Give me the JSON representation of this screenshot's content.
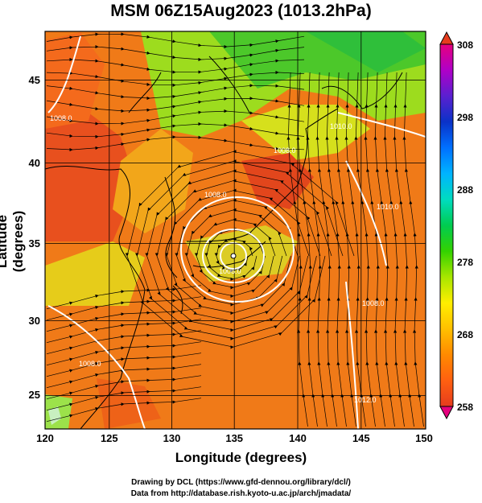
{
  "title": "MSM 06Z15Aug2023 (1013.2hPa)",
  "axes": {
    "xlabel": "Longitude (degrees)",
    "ylabel": "Latitude  (degrees)",
    "xticks": [
      "120",
      "125",
      "130",
      "135",
      "140",
      "145",
      "150"
    ],
    "yticks": [
      "25",
      "30",
      "35",
      "40",
      "45"
    ],
    "xlim": [
      120,
      150
    ],
    "ylim": [
      22.5,
      47.5
    ]
  },
  "colorbar": {
    "ticks": [
      "308",
      "298",
      "288",
      "278",
      "268",
      "258"
    ],
    "range": [
      258,
      308
    ],
    "colors": [
      "#e6007e",
      "#b000c8",
      "#5a20d0",
      "#0a32c8",
      "#0070ff",
      "#00b4ff",
      "#00dcc0",
      "#00cc50",
      "#33d200",
      "#a8e600",
      "#ffee00",
      "#ffc000",
      "#ff8a00",
      "#ff6010",
      "#e63c1e"
    ]
  },
  "contour_labels": [
    "1008.0",
    "1008.0",
    "1008.0",
    "1006.0",
    "1010.0",
    "1008.0",
    "1008.0",
    "1010.0",
    "1012.0"
  ],
  "annotations": {
    "typhoon_center": {
      "lon": 135.2,
      "lat": 34.6
    }
  },
  "credits": {
    "line1": "Drawing by DCL (https://www.gfd-dennou.org/library/dcl/)",
    "line2": "Data from http://database.rish.kyoto-u.ac.jp/arch/jmadata/"
  }
}
